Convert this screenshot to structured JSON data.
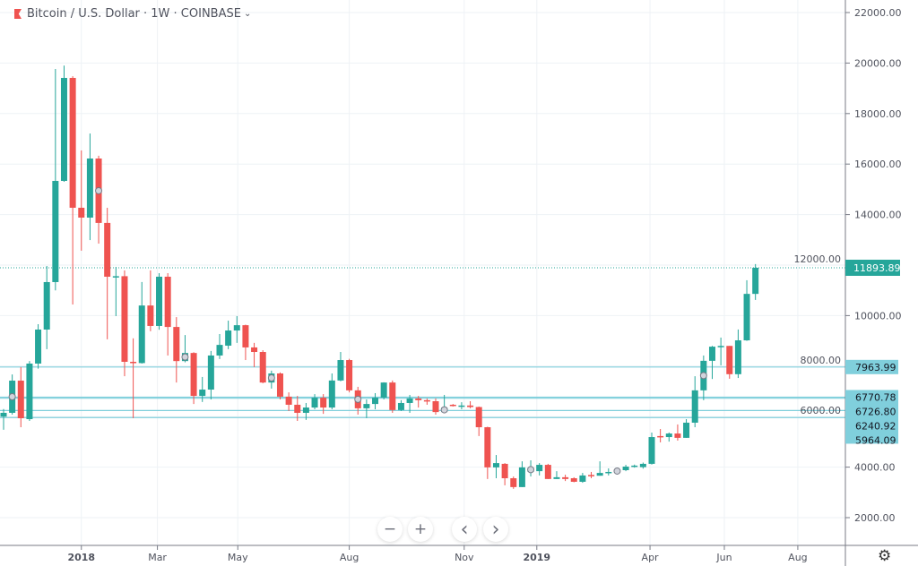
{
  "legend": {
    "title": "Bitcoin / U.S. Dollar · 1W · COINBASE",
    "chevron": "⌄"
  },
  "nav": {
    "zoom_out": "−",
    "zoom_in": "+",
    "scroll_left": "‹",
    "scroll_right": "›",
    "settings": "⚙"
  },
  "colors": {
    "up": "#26a69a",
    "down": "#ef5350",
    "level": "#80cfdc",
    "grid": "#eef2f6",
    "last_price": "#26a69a"
  },
  "chart_data": {
    "type": "candlestick",
    "interval": "1W",
    "ylim": [
      2000,
      22000
    ],
    "y_ticks": [
      "2000.00",
      "4000.00",
      "6000.00",
      "8000.00",
      "10000.00",
      "12000.00",
      "14000.00",
      "16000.00",
      "18000.00",
      "20000.00",
      "22000.00"
    ],
    "x_ticks": [
      {
        "label": "2018",
        "week": 10,
        "bold": true
      },
      {
        "label": "Mar",
        "week": 18.8
      },
      {
        "label": "May",
        "week": 28.1
      },
      {
        "label": "Aug",
        "week": 41
      },
      {
        "label": "Nov",
        "week": 54.3
      },
      {
        "label": "2019",
        "week": 62.7,
        "bold": true
      },
      {
        "label": "Apr",
        "week": 75.8
      },
      {
        "label": "Jun",
        "week": 84.4
      },
      {
        "label": "Aug",
        "week": 92.9
      }
    ],
    "last_price": "11893.89",
    "price_levels": [
      "7963.99",
      "6770.78",
      "6726.80",
      "6240.92",
      "5964.09"
    ],
    "marker_candles": [
      1,
      11,
      21,
      31,
      41,
      51,
      61,
      71,
      81
    ],
    "ohlc": [
      [
        6000,
        6300,
        5480,
        6150
      ],
      [
        6150,
        7670,
        6080,
        7425
      ],
      [
        7425,
        7960,
        5580,
        5936
      ],
      [
        5900,
        8200,
        5830,
        8100
      ],
      [
        8100,
        9660,
        7900,
        9447
      ],
      [
        9447,
        11965,
        8670,
        11327
      ],
      [
        11327,
        19766,
        11000,
        15333
      ],
      [
        15333,
        19900,
        15300,
        19411
      ],
      [
        19411,
        19480,
        10440,
        14270
      ],
      [
        14270,
        16540,
        12570,
        13880
      ],
      [
        13880,
        17210,
        12990,
        16220
      ],
      [
        16220,
        16330,
        12850,
        13670
      ],
      [
        13670,
        14270,
        9060,
        11540
      ],
      [
        11520,
        11930,
        9980,
        11560
      ],
      [
        11560,
        11790,
        7600,
        8170
      ],
      [
        8170,
        9100,
        5940,
        8120
      ],
      [
        8120,
        11330,
        8100,
        10400
      ],
      [
        10400,
        11790,
        9380,
        9590
      ],
      [
        9590,
        11680,
        9440,
        11540
      ],
      [
        11540,
        11680,
        8420,
        9550
      ],
      [
        9550,
        9940,
        7350,
        8200
      ],
      [
        8200,
        9230,
        8150,
        8520
      ],
      [
        8520,
        8550,
        6500,
        6820
      ],
      [
        6820,
        7570,
        6580,
        7070
      ],
      [
        7070,
        8600,
        6680,
        8420
      ],
      [
        8420,
        9270,
        8280,
        8840
      ],
      [
        8810,
        9800,
        8670,
        9410
      ],
      [
        9410,
        9980,
        8920,
        9620
      ],
      [
        9620,
        9640,
        8240,
        8740
      ],
      [
        8740,
        8920,
        7960,
        8560
      ],
      [
        8560,
        8630,
        7320,
        7350
      ],
      [
        7350,
        7820,
        7110,
        7710
      ],
      [
        7710,
        7750,
        6680,
        6790
      ],
      [
        6790,
        6960,
        6220,
        6470
      ],
      [
        6470,
        6820,
        5830,
        6150
      ],
      [
        6150,
        6540,
        5870,
        6360
      ],
      [
        6360,
        6890,
        6290,
        6750
      ],
      [
        6750,
        6890,
        6110,
        6360
      ],
      [
        6360,
        7710,
        6290,
        7430
      ],
      [
        7430,
        8560,
        7400,
        8240
      ],
      [
        8240,
        8290,
        6960,
        7040
      ],
      [
        7040,
        7180,
        6080,
        6330
      ],
      [
        6330,
        6680,
        5940,
        6500
      ],
      [
        6500,
        6930,
        6290,
        6750
      ],
      [
        6750,
        7360,
        6680,
        7350
      ],
      [
        7350,
        7430,
        6150,
        6260
      ],
      [
        6260,
        6650,
        6220,
        6540
      ],
      [
        6540,
        6860,
        6150,
        6720
      ],
      [
        6720,
        6820,
        6360,
        6650
      ],
      [
        6650,
        6720,
        6470,
        6610
      ],
      [
        6610,
        6720,
        6080,
        6180
      ],
      [
        6180,
        6860,
        6180,
        6360
      ],
      [
        6470,
        6500,
        6400,
        6430
      ],
      [
        6410,
        6570,
        6290,
        6440
      ],
      [
        6440,
        6610,
        6330,
        6380
      ],
      [
        6380,
        6400,
        5230,
        5580
      ],
      [
        5580,
        5600,
        3530,
        3990
      ],
      [
        3990,
        4480,
        3560,
        4160
      ],
      [
        4130,
        4160,
        3280,
        3560
      ],
      [
        3560,
        3630,
        3140,
        3210
      ],
      [
        3210,
        4230,
        3210,
        3990
      ],
      [
        3810,
        4270,
        3630,
        3990
      ],
      [
        3840,
        4160,
        3670,
        4090
      ],
      [
        4090,
        4130,
        3530,
        3530
      ],
      [
        3530,
        3840,
        3530,
        3600
      ],
      [
        3600,
        3700,
        3450,
        3530
      ],
      [
        3560,
        3600,
        3400,
        3420
      ],
      [
        3420,
        3770,
        3380,
        3670
      ],
      [
        3690,
        3810,
        3560,
        3660
      ],
      [
        3660,
        4230,
        3660,
        3770
      ],
      [
        3770,
        3950,
        3670,
        3810
      ],
      [
        3810,
        3950,
        3740,
        3880
      ],
      [
        3880,
        4090,
        3840,
        4020
      ],
      [
        4020,
        4100,
        3980,
        4060
      ],
      [
        4000,
        4180,
        3940,
        4130
      ],
      [
        4130,
        5370,
        4100,
        5190
      ],
      [
        5230,
        5510,
        4980,
        5190
      ],
      [
        5190,
        5370,
        5010,
        5330
      ],
      [
        5330,
        5690,
        5050,
        5160
      ],
      [
        5160,
        5900,
        5160,
        5760
      ],
      [
        5760,
        7600,
        5580,
        7040
      ],
      [
        7040,
        8420,
        6650,
        8210
      ],
      [
        8210,
        8800,
        7490,
        8770
      ],
      [
        8770,
        9130,
        8030,
        8800
      ],
      [
        8800,
        8800,
        7500,
        7680
      ],
      [
        7680,
        9450,
        7530,
        9020
      ],
      [
        9020,
        11400,
        9000,
        10860
      ],
      [
        10860,
        12040,
        10620,
        11893.89
      ]
    ]
  }
}
